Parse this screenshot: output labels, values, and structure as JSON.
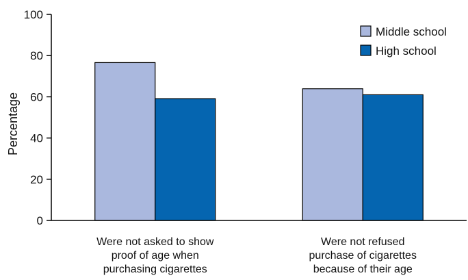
{
  "chart_data": {
    "type": "bar",
    "title": "",
    "xlabel": "",
    "ylabel": "Percentage",
    "ylim": [
      0,
      100
    ],
    "yticks": [
      0,
      20,
      40,
      60,
      80,
      100
    ],
    "grid": false,
    "legend_position": "top-right",
    "categories": [
      [
        "Were not asked to show",
        "proof of age when",
        "purchasing cigarettes"
      ],
      [
        "Were not refused",
        "purchase of cigarettes",
        "because of their age"
      ]
    ],
    "series": [
      {
        "name": "Middle school",
        "color": "#aab8de",
        "values": [
          76.6,
          63.9
        ]
      },
      {
        "name": "High school",
        "color": "#0565b0",
        "values": [
          59.1,
          61.0
        ]
      }
    ]
  }
}
